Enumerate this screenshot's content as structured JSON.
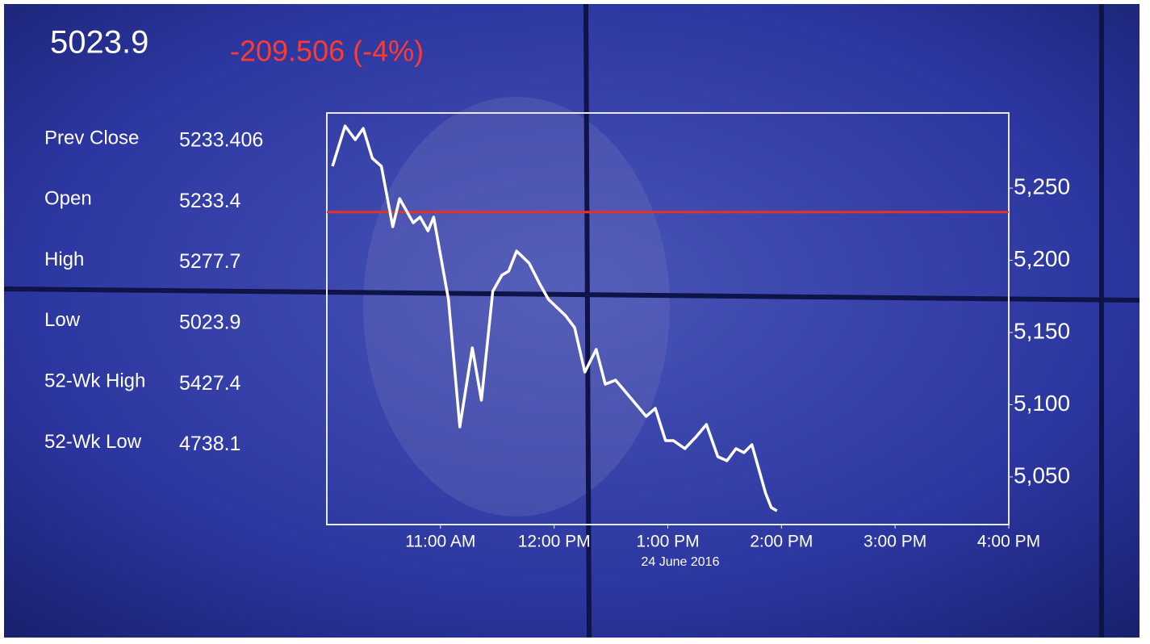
{
  "quote": {
    "last": 5023.9,
    "change": "-209.506 (-4%)",
    "stats": [
      {
        "label": "Prev Close",
        "value": 5233.406
      },
      {
        "label": "Open",
        "value": 5233.4
      },
      {
        "label": "High",
        "value": 5277.7
      },
      {
        "label": "Low",
        "value": 5023.9
      },
      {
        "label": "52-Wk High",
        "value": 5427.4
      },
      {
        "label": "52-Wk Low",
        "value": 4738.1
      }
    ]
  },
  "chart_data": {
    "type": "line",
    "xlabel": "24 June 2016",
    "x": [
      10.05,
      10.16,
      10.25,
      10.32,
      10.4,
      10.48,
      10.58,
      10.64,
      10.76,
      10.82,
      10.89,
      10.94,
      11.07,
      11.17,
      11.28,
      11.36,
      11.46,
      11.54,
      11.6,
      11.67,
      11.78,
      11.87,
      11.95,
      12.1,
      12.18,
      12.27,
      12.37,
      12.45,
      12.54,
      12.63,
      12.81,
      12.89,
      12.98,
      13.05,
      13.15,
      13.25,
      13.34,
      13.44,
      13.52,
      13.6,
      13.67,
      13.74,
      13.86,
      13.91,
      13.96
    ],
    "series": [
      {
        "color": "#ffffff",
        "values": [
          5265.1,
          5293,
          5283.5,
          5291.3,
          5270.7,
          5265.1,
          5223.2,
          5242.7,
          5226,
          5229.9,
          5220.4,
          5229.9,
          5172.9,
          5084.6,
          5139.4,
          5103.1,
          5178.5,
          5189.7,
          5192.5,
          5206.4,
          5198,
          5184.1,
          5172.9,
          5161.7,
          5153.4,
          5122.6,
          5138.3,
          5114.2,
          5117,
          5108.7,
          5091.9,
          5097.5,
          5075.1,
          5075.1,
          5069.6,
          5077.9,
          5086.3,
          5064,
          5061.2,
          5069.6,
          5066.8,
          5072.3,
          5038.8,
          5028.8,
          5026.5
        ]
      }
    ],
    "reference_color": "#e8302a",
    "xlim": [
      10,
      16
    ],
    "ylim": [
      5017,
      5302
    ],
    "xticks": [
      {
        "value": 11,
        "label": "11:00 AM"
      },
      {
        "value": 12,
        "label": "12:00 PM"
      },
      {
        "value": 13,
        "label": "1:00 PM"
      },
      {
        "value": 14,
        "label": "2:00 PM"
      },
      {
        "value": 15,
        "label": "3:00 PM"
      },
      {
        "value": 16,
        "label": "4:00 PM"
      }
    ],
    "yticks": [
      {
        "value": 5050,
        "label": "5,050"
      },
      {
        "value": 5100,
        "label": "5,100"
      },
      {
        "value": 5150,
        "label": "5,150"
      },
      {
        "value": 5200,
        "label": "5,200"
      },
      {
        "value": 5250,
        "label": "5,250"
      }
    ]
  }
}
